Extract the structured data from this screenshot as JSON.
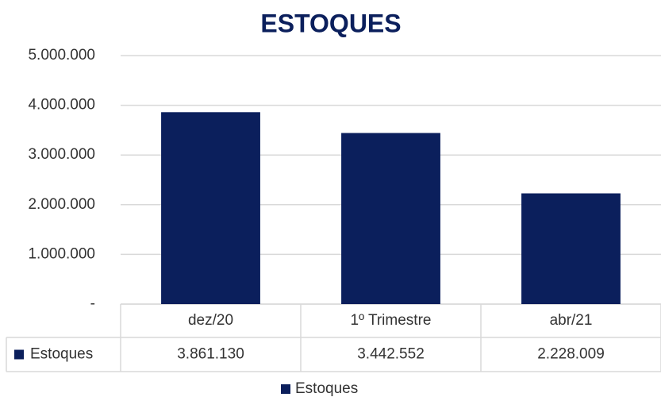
{
  "chart_data": {
    "type": "bar",
    "title": "ESTOQUES",
    "categories": [
      "dez/20",
      "1º Trimestre",
      "abr/21"
    ],
    "series": [
      {
        "name": "Estoques",
        "color": "#0b1f5c",
        "values": [
          3861130,
          3442552,
          2228009
        ],
        "value_labels": [
          "3.861.130",
          "3.442.552",
          "2.228.009"
        ]
      }
    ],
    "ylim": [
      0,
      5000000
    ],
    "yticks": [
      {
        "value": 0,
        "label": "-"
      },
      {
        "value": 1000000,
        "label": "1.000.000"
      },
      {
        "value": 2000000,
        "label": "2.000.000"
      },
      {
        "value": 3000000,
        "label": "3.000.000"
      },
      {
        "value": 4000000,
        "label": "4.000.000"
      },
      {
        "value": 5000000,
        "label": "5.000.000"
      }
    ],
    "grid": true,
    "legend": "bottom"
  }
}
